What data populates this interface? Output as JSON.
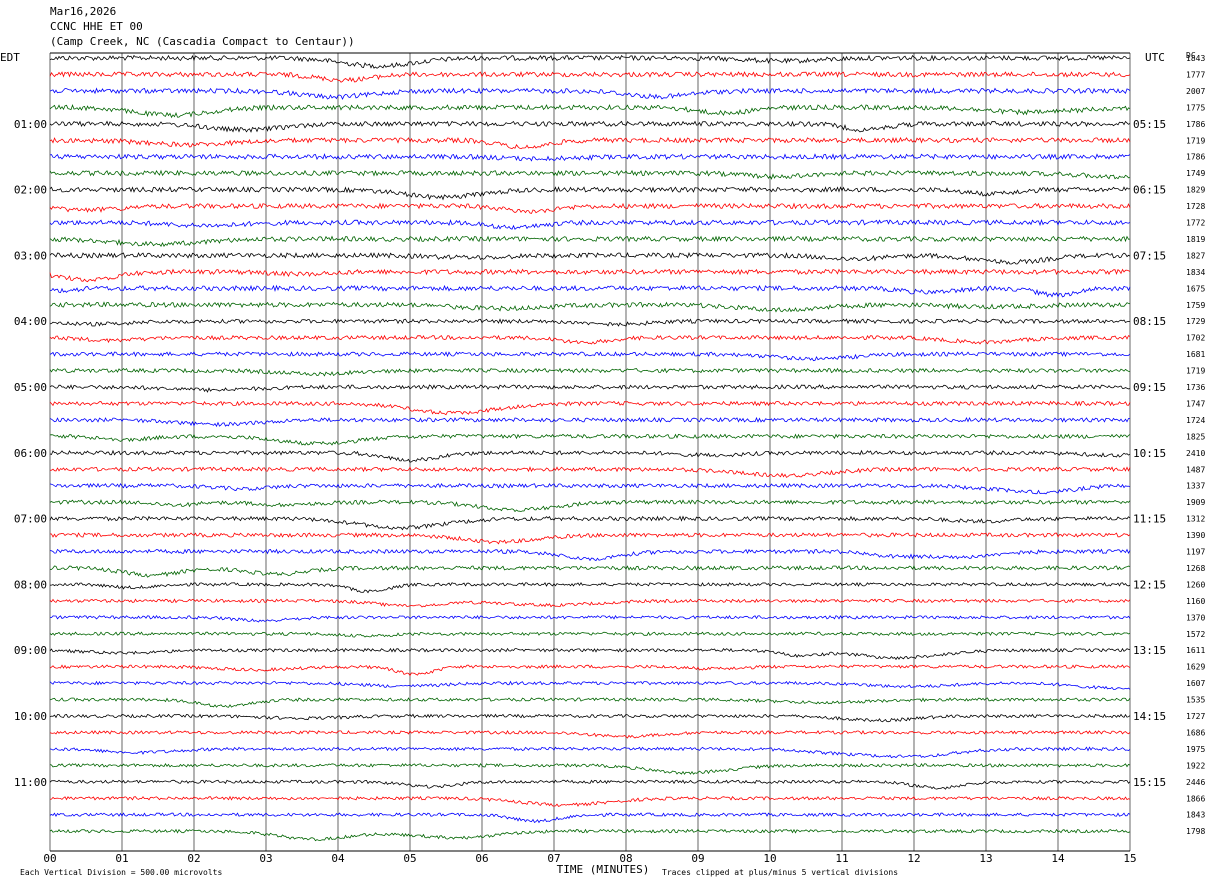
{
  "header": {
    "date": "Mar16,2026",
    "station": "CCNC HHE ET 00",
    "location": "(Camp Creek, NC (Cascadia Compact to Centaur))"
  },
  "left_axis_title": "EDT",
  "right_axis_title": "UTC",
  "dc_title": "DC",
  "left_hour_labels": [
    "01:00",
    "02:00",
    "03:00",
    "04:00",
    "05:00",
    "06:00",
    "07:00",
    "08:00",
    "09:00",
    "10:00",
    "11:00"
  ],
  "right_hour_labels": [
    "05:15",
    "06:15",
    "07:15",
    "08:15",
    "09:15",
    "10:15",
    "11:15",
    "12:15",
    "13:15",
    "14:15",
    "15:15"
  ],
  "x_tick_labels": [
    "00",
    "01",
    "02",
    "03",
    "04",
    "05",
    "06",
    "07",
    "08",
    "09",
    "10",
    "11",
    "12",
    "13",
    "14",
    "15"
  ],
  "x_axis_title": "TIME (MINUTES)",
  "footer_left": "Each Vertical Division =  500.00 microvolts",
  "footer_right": "Traces clipped at plus/minus 5 vertical divisions",
  "colors": {
    "black": "#000000",
    "red": "#ff0000",
    "blue": "#0000ff",
    "green": "#006400",
    "grid": "#000000"
  },
  "chart_data": {
    "type": "line",
    "title": "Mar16,2026 CCNC HHE ET 00 (Camp Creek, NC (Cascadia Compact to Centaur))",
    "xlabel": "TIME (MINUTES)",
    "xlim": [
      0,
      15
    ],
    "trace_color_cycle": [
      "black",
      "red",
      "blue",
      "green"
    ],
    "trace_count": 48,
    "dc_offsets": [
      1843,
      1777,
      2007,
      1775,
      1786,
      1719,
      1786,
      1749,
      1829,
      1728,
      1772,
      1819,
      1827,
      1834,
      1675,
      1759,
      1729,
      1702,
      1681,
      1719,
      1736,
      1747,
      1724,
      1825,
      2410,
      1487,
      1337,
      1909,
      1312,
      1390,
      1197,
      1268,
      1260,
      1160,
      1370,
      1572,
      1611,
      1629,
      1607,
      1535,
      1727,
      1686,
      1975,
      1922,
      2446,
      1866,
      1843,
      1798
    ]
  }
}
